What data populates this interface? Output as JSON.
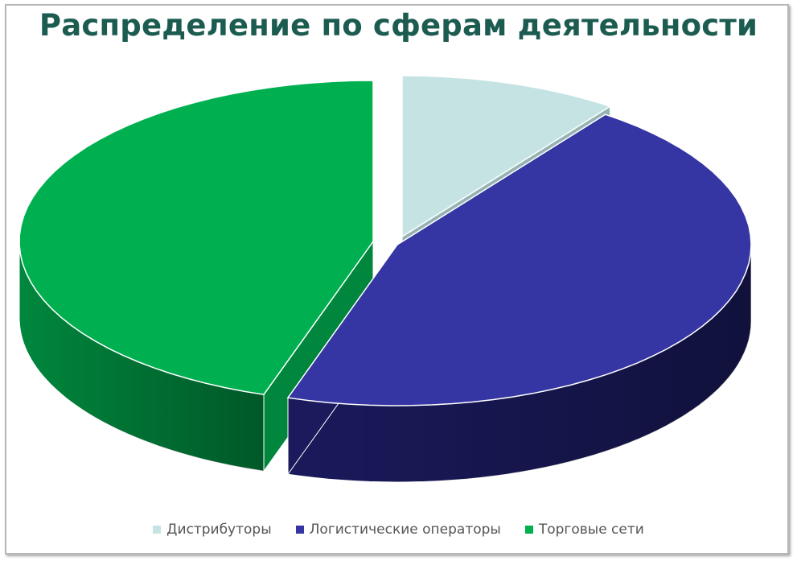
{
  "title": "Распределение по сферам деятельности",
  "chart_data": {
    "type": "pie",
    "style": "3d-exploded",
    "title": "Распределение по сферам деятельности",
    "legend_position": "bottom",
    "categories": [
      "Дистрибуторы",
      "Логистические операторы",
      "Торговые сети"
    ],
    "values": [
      10,
      45,
      45
    ],
    "colors": [
      "#c5e3e3",
      "#3535a3",
      "#00b050"
    ],
    "side_colors": [
      "#96b3b3",
      "#1a1a5c",
      "#00873d"
    ]
  }
}
